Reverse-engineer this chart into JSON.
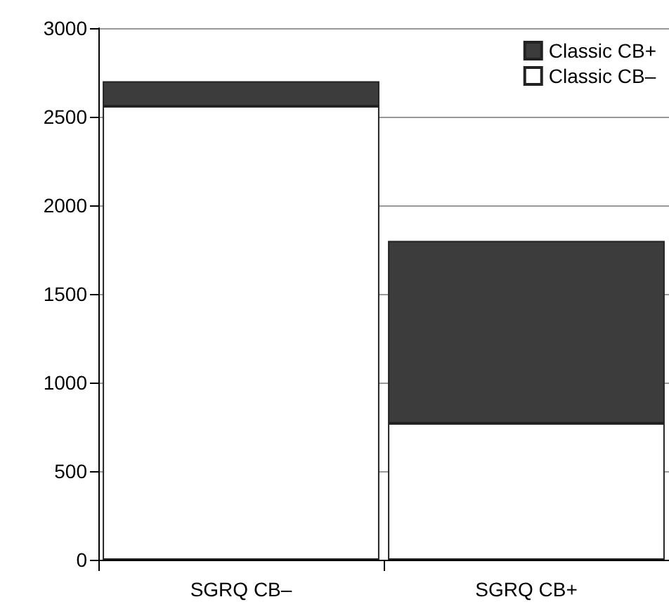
{
  "chart_data": {
    "type": "bar",
    "stacked": true,
    "categories": [
      "SGRQ CB–",
      "SGRQ CB+"
    ],
    "series": [
      {
        "name": "Classic CB–",
        "color": "#ffffff",
        "values": [
          2560,
          770
        ]
      },
      {
        "name": "Classic CB+",
        "color": "#3c3c3c",
        "values": [
          140,
          1030
        ]
      }
    ],
    "ylim": [
      0,
      3000
    ],
    "yticks": [
      0,
      500,
      1000,
      1500,
      2000,
      2500,
      3000
    ],
    "grid": "y",
    "legend": "top right"
  }
}
